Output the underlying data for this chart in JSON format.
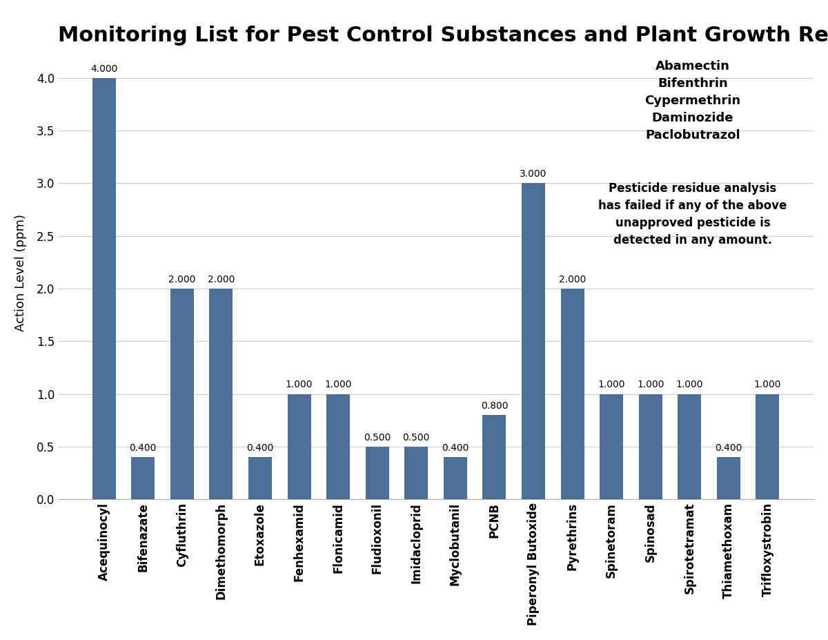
{
  "title": "Monitoring List for Pest Control Substances and Plant Growth Regulators",
  "ylabel": "Action Level (ppm)",
  "categories": [
    "Acequinocyl",
    "Bifenazate",
    "Cyfluthrin",
    "Dimethomorph",
    "Etoxazole",
    "Fenhexamid",
    "Flonicamid",
    "Fludioxonil",
    "Imidacloprid",
    "Myclobutanil",
    "PCNB",
    "Piperonyl Butoxide",
    "Pyrethrins",
    "Spinetoram",
    "Spinosad",
    "Spirotetramat",
    "Thiamethoxam",
    "Trifloxystrobin"
  ],
  "values": [
    4.0,
    0.4,
    2.0,
    2.0,
    0.4,
    1.0,
    1.0,
    0.5,
    0.5,
    0.4,
    0.8,
    3.0,
    2.0,
    1.0,
    1.0,
    1.0,
    0.4,
    1.0
  ],
  "bar_color": "#4a7098",
  "ylim": [
    0,
    4.3
  ],
  "yticks": [
    0.0,
    0.5,
    1.0,
    1.5,
    2.0,
    2.5,
    3.0,
    3.5,
    4.0
  ],
  "annotation_names": "Abamectin\nBifenthrin\nCypermethrin\nDaminozide\nPaclobutrazol",
  "annotation_note": "Pesticide residue analysis\nhas failed if any of the above\nunapproved pesticide is\ndetected in any amount.",
  "bg_color": "#ffffff",
  "grid_color": "#cccccc",
  "title_fontsize": 22,
  "label_fontsize": 13,
  "tick_fontsize": 12,
  "bar_label_fontsize": 10,
  "annot_names_fontsize": 13,
  "annot_note_fontsize": 12
}
